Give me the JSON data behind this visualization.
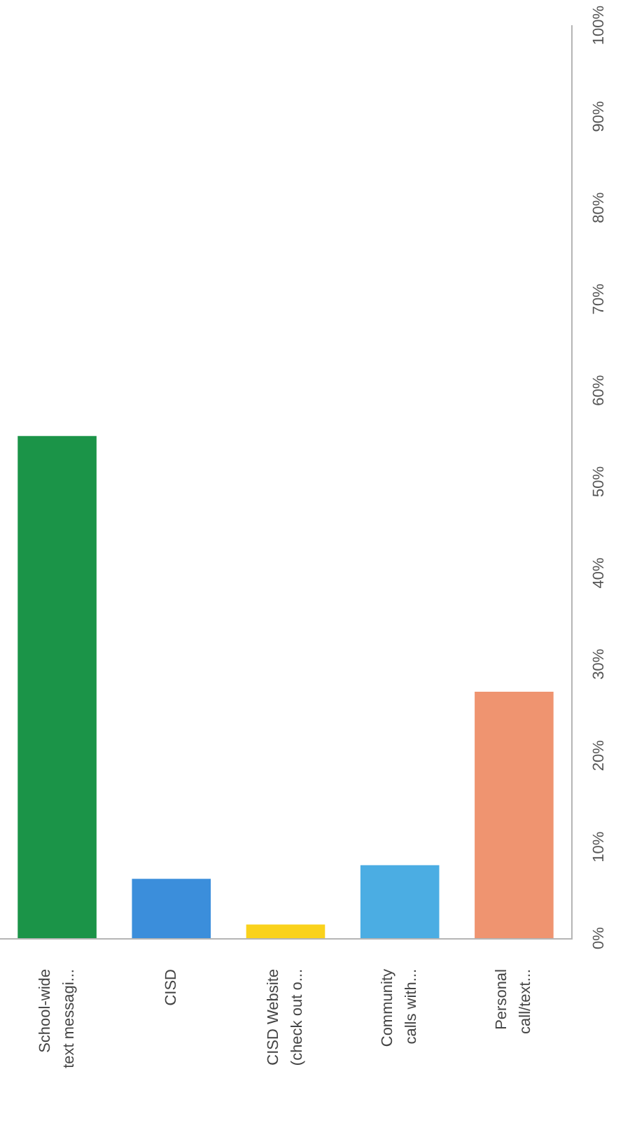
{
  "chart_data": {
    "type": "bar",
    "categories": [
      "School-wide text messagi...",
      "CISD",
      "CISD Website (check out o...",
      "Community calls with...",
      "Personal call/text..."
    ],
    "values": [
      55,
      6.5,
      1.5,
      8,
      27
    ],
    "colors": [
      "#1b9448",
      "#3b8edb",
      "#fad21c",
      "#4badE3",
      "#ef9470"
    ],
    "ylim": [
      0,
      100
    ],
    "yticks": [
      {
        "value": 0,
        "label": "0%"
      },
      {
        "value": 10,
        "label": "10%"
      },
      {
        "value": 20,
        "label": "20%"
      },
      {
        "value": 30,
        "label": "30%"
      },
      {
        "value": 40,
        "label": "40%"
      },
      {
        "value": 50,
        "label": "50%"
      },
      {
        "value": 60,
        "label": "60%"
      },
      {
        "value": 70,
        "label": "70%"
      },
      {
        "value": 80,
        "label": "80%"
      },
      {
        "value": 90,
        "label": "90%"
      },
      {
        "value": 100,
        "label": "100%"
      }
    ]
  }
}
